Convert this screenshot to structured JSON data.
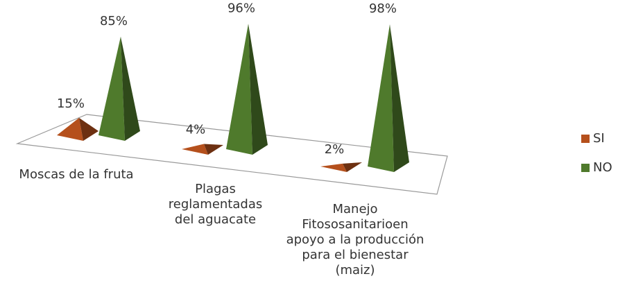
{
  "chart_data": {
    "type": "pyramid3d",
    "categories": [
      "Moscas de la fruta",
      "Plagas reglamentadas del aguacate",
      "Manejo Fitososanitarioen apoyo a la producción para el bienestar (maiz)"
    ],
    "series": [
      {
        "name": "SI",
        "color": "#b5501c",
        "values": [
          15,
          4,
          2
        ],
        "value_labels": [
          "15%",
          "4%",
          "2%"
        ]
      },
      {
        "name": "NO",
        "color": "#4f7a2c",
        "values": [
          85,
          96,
          98
        ],
        "value_labels": [
          "85%",
          "96%",
          "98%"
        ]
      }
    ],
    "legend": "right"
  }
}
